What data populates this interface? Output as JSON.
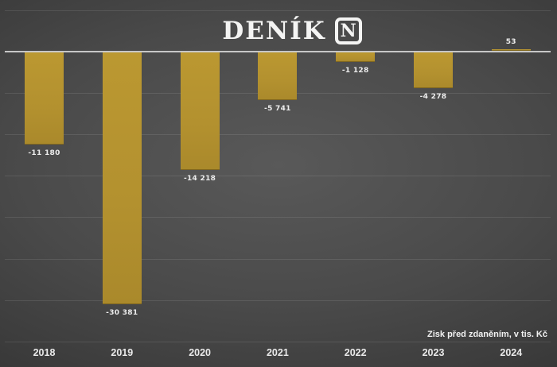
{
  "header": {
    "logo_text": "DENÍK",
    "logo_badge": "N"
  },
  "chart_data": {
    "type": "bar",
    "title": "DENÍK N",
    "categories": [
      "2018",
      "2019",
      "2020",
      "2021",
      "2022",
      "2023",
      "2024"
    ],
    "values": [
      -11180,
      -30381,
      -14218,
      -5741,
      -1128,
      -4278,
      53
    ],
    "value_labels": [
      "-11 180",
      "-30 381",
      "-14 218",
      "-5 741",
      "-1 128",
      "-4 278",
      "53"
    ],
    "axis_note": "Zisk před zdaněním, v tis. Kč",
    "xlabel": "",
    "ylabel": "Zisk před zdaněním, v tis. Kč",
    "ylim": [
      -35000,
      5000
    ],
    "gridline_step": 5000,
    "grid": true,
    "legend": "none",
    "colors": {
      "bar": "#b3912f",
      "background_center": "#595959",
      "background_edge": "#282828",
      "zero_line": "#c7c7c7",
      "gridline": "rgba(255,255,255,0.10)",
      "label_text": "#ececec"
    }
  }
}
